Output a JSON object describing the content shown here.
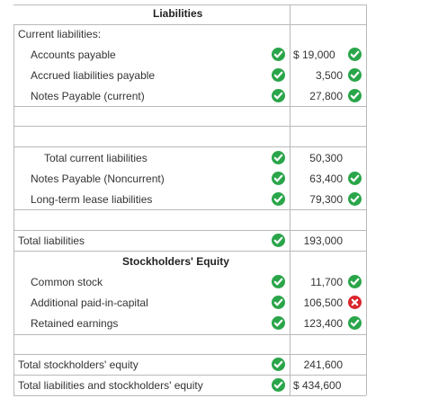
{
  "title": "Liabilities",
  "section_current": "Current liabilities:",
  "rows": {
    "accounts_payable": {
      "label": "Accounts payable",
      "value": "$ 19,000"
    },
    "accrued": {
      "label": "Accrued liabilities payable",
      "value": "3,500"
    },
    "notes_current": {
      "label": "Notes Payable (current)",
      "value": "27,800"
    },
    "total_current": {
      "label": "Total current liabilities",
      "value": "50,300"
    },
    "notes_noncurrent": {
      "label": "Notes Payable (Noncurrent)",
      "value": "63,400"
    },
    "lease": {
      "label": "Long-term lease liabilities",
      "value": "79,300"
    },
    "total_liabilities": {
      "label": "Total liabilities",
      "value": "193,000"
    },
    "common_stock": {
      "label": "Common stock",
      "value": "11,700"
    },
    "apic": {
      "label": "Additional paid-in-capital",
      "value": "106,500"
    },
    "retained": {
      "label": "Retained earnings",
      "value": "123,400"
    },
    "total_equity": {
      "label": "Total stockholders' equity",
      "value": "241,600"
    },
    "total_le": {
      "label": "Total liabilities and stockholders' equity",
      "value": "$ 434,600"
    }
  },
  "equity_title": "Stockholders' Equity",
  "colors": {
    "correct": "#2aa54a",
    "incorrect": "#d9262c"
  }
}
